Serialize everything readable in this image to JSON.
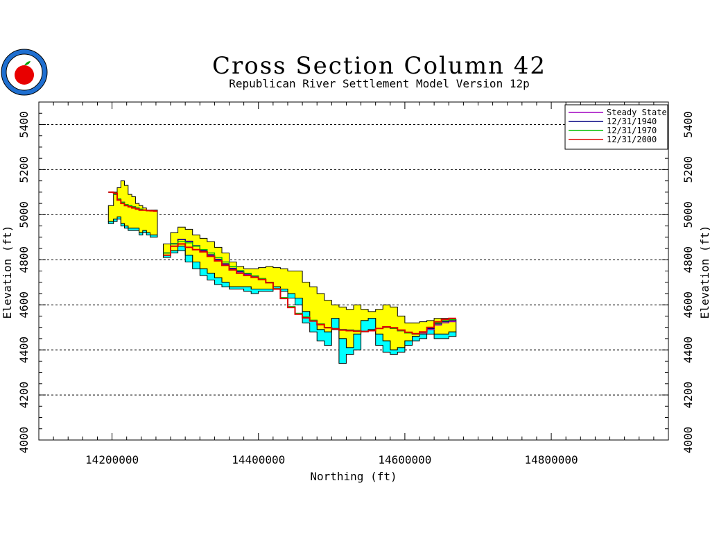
{
  "chart_data": {
    "type": "area",
    "title": "Cross Section Column 42",
    "subtitle": "Republican River Settlement Model Version 12p",
    "xlabel": "Northing (ft)",
    "ylabel": "Elevation (ft)",
    "xlim": [
      14100000,
      14960000
    ],
    "ylim": [
      4000,
      5500
    ],
    "x_ticks": [
      14200000,
      14400000,
      14600000,
      14800000
    ],
    "x_tick_labels": [
      "14200000",
      "14400000",
      "14600000",
      "14800000"
    ],
    "y_ticks": [
      4000,
      4200,
      4400,
      4600,
      4800,
      5000,
      5200,
      5400
    ],
    "y_tick_labels": [
      "4000",
      "4200",
      "4400",
      "4600",
      "4800",
      "5000",
      "5200",
      "5400"
    ],
    "grid": "horizontal-dashed",
    "legend_position": "top-right",
    "colors": {
      "layer_top": "#ffff00",
      "layer_bottom": "#00ffff",
      "outline": "#000000"
    },
    "segments": [
      {
        "x": [
          14195000,
          14202000,
          14207000,
          14212000,
          14217000,
          14222000,
          14227000,
          14232000,
          14237000,
          14242000,
          14247000,
          14252000,
          14257000
        ],
        "top": [
          5040,
          5100,
          5120,
          5150,
          5130,
          5090,
          5080,
          5050,
          5040,
          5030,
          5020,
          5020,
          5020
        ],
        "mid": [
          4970,
          4980,
          4990,
          4960,
          4950,
          4940,
          4940,
          4940,
          4920,
          4930,
          4920,
          4910,
          4910
        ],
        "bot": [
          4960,
          4970,
          4980,
          4950,
          4940,
          4930,
          4930,
          4930,
          4910,
          4920,
          4910,
          4900,
          4900
        ],
        "steady": [
          5100,
          5090,
          5070,
          5055,
          5045,
          5040,
          5035,
          5030,
          5025,
          5020,
          5018,
          5017,
          5016
        ],
        "y1940": [
          5100,
          5090,
          5070,
          5055,
          5045,
          5040,
          5035,
          5030,
          5025,
          5020,
          5018,
          5017,
          5016
        ],
        "y1970": [
          5100,
          5090,
          5070,
          5055,
          5045,
          5040,
          5035,
          5030,
          5025,
          5020,
          5018,
          5017,
          5016
        ],
        "y2000": [
          5100,
          5095,
          5065,
          5050,
          5040,
          5035,
          5030,
          5025,
          5020,
          5020,
          5018,
          5017,
          5016
        ]
      },
      {
        "x": [
          14270000,
          14280000,
          14290000,
          14300000,
          14310000,
          14320000,
          14330000,
          14340000,
          14350000,
          14360000,
          14370000,
          14380000,
          14390000,
          14400000,
          14410000,
          14420000,
          14430000,
          14440000,
          14450000,
          14460000,
          14470000,
          14480000,
          14490000,
          14500000,
          14510000,
          14520000,
          14530000,
          14540000,
          14550000,
          14560000,
          14570000,
          14580000,
          14590000,
          14600000,
          14610000,
          14620000,
          14630000,
          14640000,
          14650000,
          14660000,
          14665000
        ],
        "top": [
          4870,
          4920,
          4945,
          4935,
          4910,
          4895,
          4880,
          4855,
          4830,
          4790,
          4770,
          4760,
          4760,
          4765,
          4770,
          4765,
          4760,
          4750,
          4750,
          4700,
          4680,
          4650,
          4620,
          4600,
          4590,
          4580,
          4600,
          4580,
          4570,
          4580,
          4600,
          4590,
          4550,
          4520,
          4520,
          4525,
          4530,
          4540,
          4540,
          4540,
          4535
        ],
        "mid": [
          4820,
          4840,
          4860,
          4820,
          4790,
          4760,
          4740,
          4720,
          4700,
          4680,
          4680,
          4680,
          4670,
          4670,
          4670,
          4680,
          4670,
          4650,
          4630,
          4570,
          4530,
          4490,
          4480,
          4540,
          4450,
          4410,
          4470,
          4530,
          4540,
          4470,
          4440,
          4400,
          4410,
          4440,
          4460,
          4470,
          4490,
          4470,
          4470,
          4480,
          4480
        ],
        "bot": [
          4810,
          4830,
          4840,
          4790,
          4760,
          4730,
          4710,
          4690,
          4680,
          4670,
          4670,
          4660,
          4650,
          4660,
          4660,
          4670,
          4660,
          4630,
          4600,
          4520,
          4480,
          4440,
          4420,
          4490,
          4340,
          4380,
          4400,
          4480,
          4490,
          4420,
          4390,
          4380,
          4390,
          4420,
          4440,
          4450,
          4470,
          4450,
          4450,
          4460,
          4460
        ],
        "steady": [
          4830,
          4870,
          4890,
          4880,
          4860,
          4840,
          4820,
          4800,
          4780,
          4760,
          4745,
          4735,
          4725,
          4715,
          4700,
          4670,
          4630,
          4590,
          4560,
          4545,
          4530,
          4515,
          4500,
          4495,
          4490,
          4488,
          4485,
          4483,
          4485,
          4495,
          4500,
          4495,
          4485,
          4475,
          4470,
          4475,
          4490,
          4510,
          4520,
          4525,
          4525
        ],
        "y1940": [
          4830,
          4872,
          4890,
          4882,
          4862,
          4842,
          4822,
          4802,
          4782,
          4762,
          4748,
          4738,
          4728,
          4716,
          4700,
          4670,
          4630,
          4590,
          4560,
          4545,
          4530,
          4515,
          4500,
          4495,
          4490,
          4488,
          4485,
          4483,
          4485,
          4495,
          4500,
          4495,
          4485,
          4475,
          4470,
          4478,
          4495,
          4515,
          4525,
          4530,
          4530
        ],
        "y1970": [
          4830,
          4870,
          4880,
          4875,
          4860,
          4845,
          4830,
          4810,
          4790,
          4770,
          4752,
          4740,
          4728,
          4716,
          4700,
          4672,
          4632,
          4592,
          4562,
          4547,
          4532,
          4515,
          4500,
          4495,
          4490,
          4488,
          4485,
          4483,
          4485,
          4495,
          4500,
          4495,
          4485,
          4475,
          4470,
          4478,
          4498,
          4520,
          4530,
          4535,
          4535
        ],
        "y2000": [
          4820,
          4860,
          4870,
          4855,
          4845,
          4835,
          4815,
          4795,
          4775,
          4755,
          4740,
          4730,
          4722,
          4712,
          4698,
          4670,
          4628,
          4588,
          4558,
          4542,
          4528,
          4512,
          4498,
          4493,
          4488,
          4485,
          4483,
          4482,
          4485,
          4495,
          4502,
          4498,
          4488,
          4478,
          4472,
          4480,
          4500,
          4525,
          4535,
          4540,
          4540
        ]
      }
    ],
    "series": [
      {
        "name": "Steady State",
        "color": "#a000c0",
        "key": "steady"
      },
      {
        "name": "12/31/1940",
        "color": "#000080",
        "key": "y1940"
      },
      {
        "name": "12/31/1970",
        "color": "#00c000",
        "key": "y1970"
      },
      {
        "name": "12/31/2000",
        "color": "#e00000",
        "key": "y2000"
      }
    ]
  }
}
